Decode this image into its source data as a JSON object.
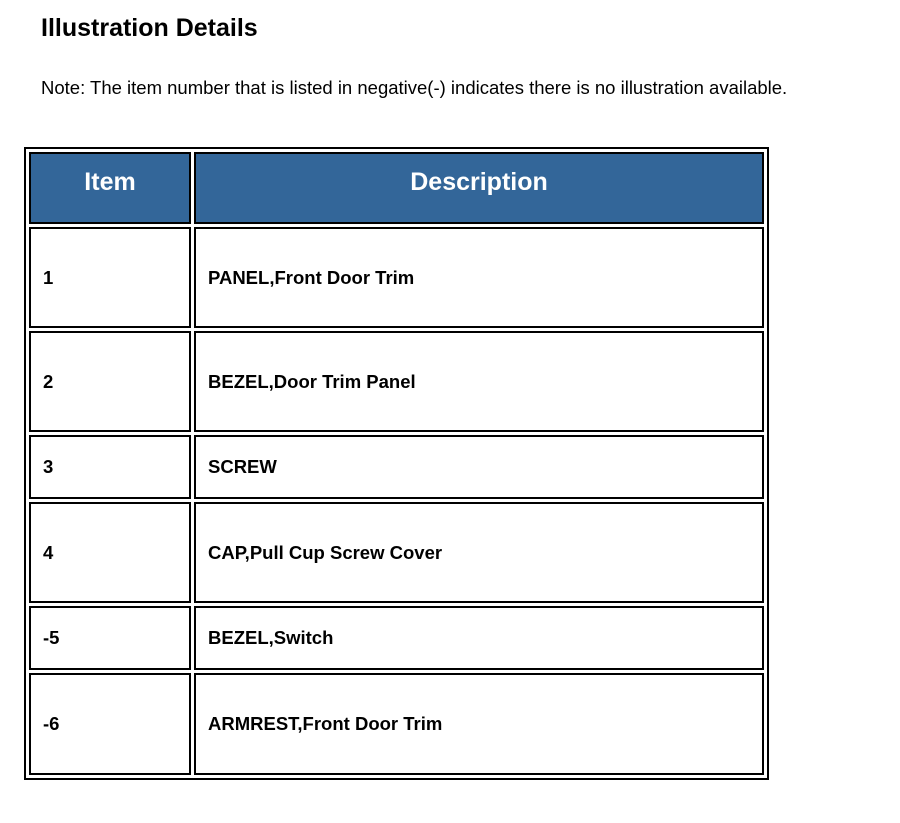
{
  "title": "Illustration Details",
  "note": "Note: The item number that is listed in negative(-) indicates there is no illustration available.",
  "table": {
    "headers": {
      "item": "Item",
      "description": "Description"
    },
    "header_color": "#336699",
    "rows": [
      {
        "item": "1",
        "description": "PANEL,Front Door Trim"
      },
      {
        "item": "2",
        "description": "BEZEL,Door Trim Panel"
      },
      {
        "item": "3",
        "description": "SCREW"
      },
      {
        "item": "4",
        "description": "CAP,Pull Cup Screw Cover"
      },
      {
        "item": "-5",
        "description": "BEZEL,Switch"
      },
      {
        "item": "-6",
        "description": "ARMREST,Front Door Trim"
      }
    ]
  }
}
